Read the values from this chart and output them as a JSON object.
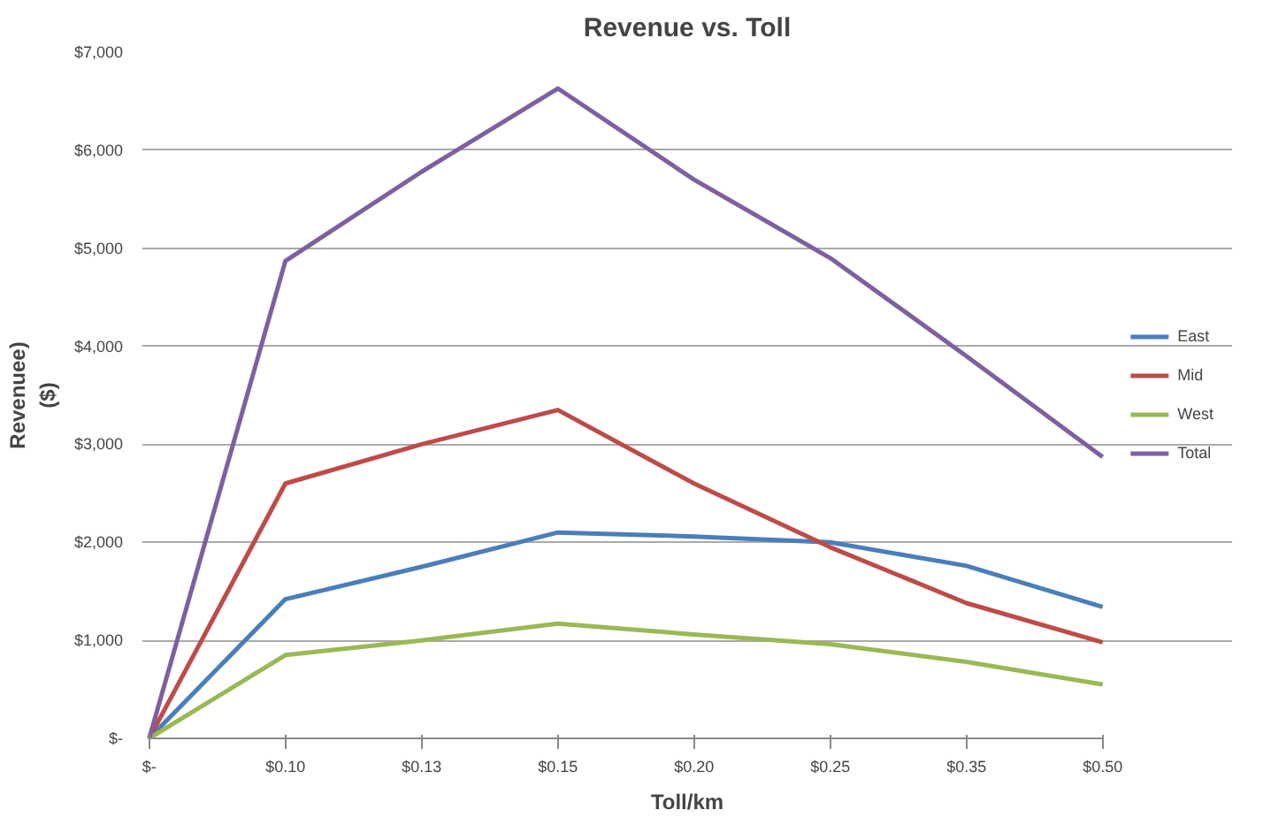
{
  "chart_data": {
    "type": "line",
    "title": "Revenue vs. Toll",
    "xlabel": "Toll/km",
    "ylabel": "Revenuee)\n($)",
    "categories": [
      "$-",
      "$0.10",
      "$0.13",
      "$0.15",
      "$0.20",
      "$0.25",
      "$0.35",
      "$0.50"
    ],
    "series": [
      {
        "name": "East",
        "color": "#4a7ebb",
        "values": [
          0,
          1420,
          1750,
          2100,
          2060,
          2000,
          1760,
          1340
        ]
      },
      {
        "name": "Mid",
        "color": "#be4b48",
        "values": [
          0,
          2600,
          3000,
          3350,
          2600,
          1950,
          1380,
          980
        ]
      },
      {
        "name": "West",
        "color": "#98b954",
        "values": [
          0,
          850,
          1000,
          1170,
          1060,
          960,
          780,
          550
        ]
      },
      {
        "name": "Total",
        "color": "#7d60a0",
        "values": [
          0,
          4870,
          5780,
          6630,
          5700,
          4900,
          3900,
          2870
        ]
      }
    ],
    "ylim": [
      0,
      7000
    ],
    "yticks": [
      {
        "value": 0,
        "label": "$-"
      },
      {
        "value": 1000,
        "label": "$1,000"
      },
      {
        "value": 2000,
        "label": "$2,000"
      },
      {
        "value": 3000,
        "label": "$3,000"
      },
      {
        "value": 4000,
        "label": "$4,000"
      },
      {
        "value": 5000,
        "label": "$5,000"
      },
      {
        "value": 6000,
        "label": "$6,000"
      },
      {
        "value": 7000,
        "label": "$7,000"
      }
    ],
    "grid": "y",
    "legend": "right",
    "marker": "none",
    "line_style": "solid"
  }
}
